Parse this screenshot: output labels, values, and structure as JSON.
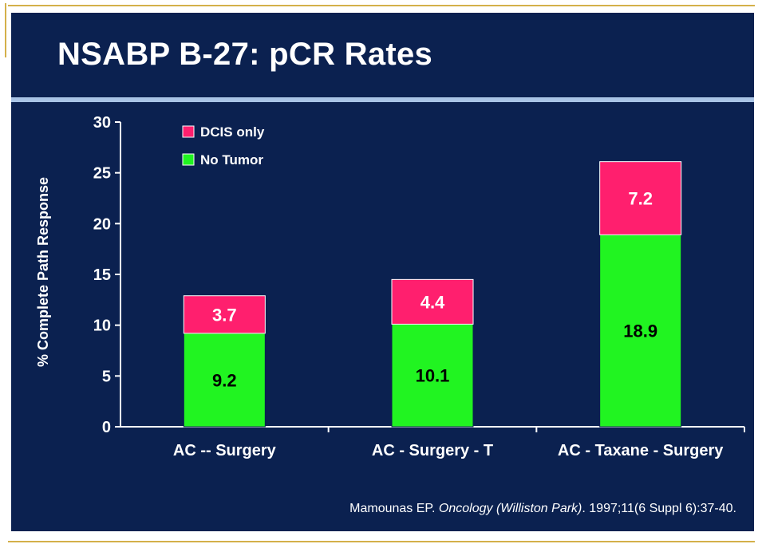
{
  "slide": {
    "title": "NSABP B-27: pCR Rates",
    "citation": {
      "author": "Mamounas EP. ",
      "journal": "Oncology (Williston Park)",
      "details": ". 1997;11(6 Suppl 6):37-40."
    }
  },
  "colors": {
    "background": "#0b2150",
    "dcis_only": "#ff1f6e",
    "no_tumor": "#21f421",
    "title_rule": "#a9c4e6"
  },
  "chart_data": {
    "type": "bar",
    "stacked": true,
    "title": "NSABP B-27: pCR Rates",
    "xlabel": "",
    "ylabel": "% Complete Path Response",
    "ylim": [
      0,
      30
    ],
    "yticks": [
      0,
      5,
      10,
      15,
      20,
      25,
      30
    ],
    "grid": false,
    "legend_position": "top-left",
    "categories": [
      "AC -- Surgery",
      "AC - Surgery - T",
      "AC - Taxane - Surgery"
    ],
    "series": [
      {
        "name": "No Tumor",
        "values": [
          9.2,
          10.1,
          18.9
        ],
        "labels": [
          "9.2",
          "10.1",
          "18.9"
        ],
        "color": "#21f421"
      },
      {
        "name": "DCIS only",
        "values": [
          3.7,
          4.4,
          7.2
        ],
        "labels": [
          "3.7",
          "4.4",
          "7.2"
        ],
        "color": "#ff1f6e"
      }
    ],
    "legend_order": [
      "DCIS only",
      "No Tumor"
    ]
  }
}
